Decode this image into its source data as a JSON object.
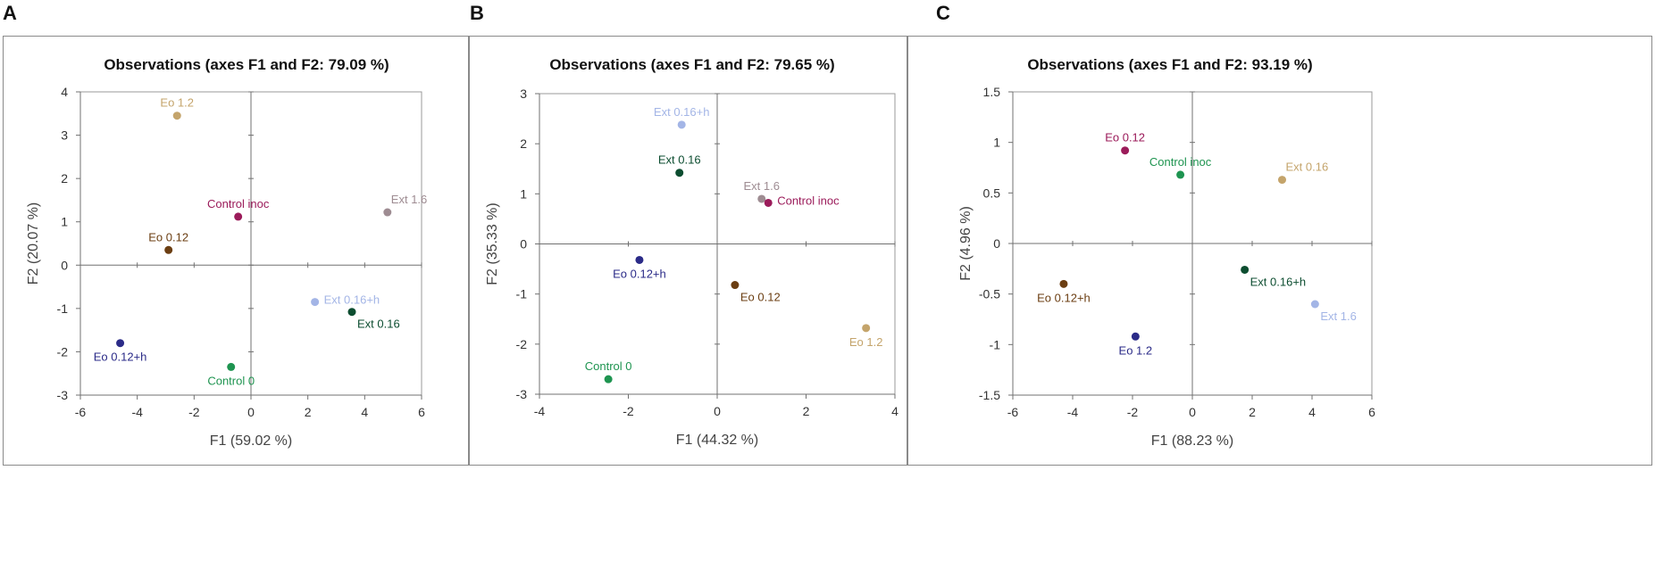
{
  "panels": [
    {
      "letter": "A"
    },
    {
      "letter": "B"
    },
    {
      "letter": "C"
    }
  ],
  "chart_data": [
    {
      "type": "scatter",
      "title": "Observations (axes F1 and F2: 79.09 %)",
      "xlabel": "F1 (59.02 %)",
      "ylabel": "F2 (20.07 %)",
      "xlim": [
        -6,
        6
      ],
      "ylim": [
        -3,
        4
      ],
      "xticks": [
        -6,
        -4,
        -2,
        0,
        2,
        4,
        6
      ],
      "yticks": [
        -3,
        -2,
        -1,
        0,
        1,
        2,
        3,
        4
      ],
      "grid": false,
      "points": [
        {
          "label": "Eo 1.2",
          "x": -2.6,
          "y": 3.45,
          "color": "#C4A46B",
          "pos": "above"
        },
        {
          "label": "Control inoc",
          "x": -0.45,
          "y": 1.12,
          "color": "#9B1B5A",
          "pos": "above"
        },
        {
          "label": "Ext 1.6",
          "x": 4.8,
          "y": 1.22,
          "color": "#9E8C92",
          "pos": "above-right"
        },
        {
          "label": "Eo 0.12",
          "x": -2.9,
          "y": 0.35,
          "color": "#6B3E12",
          "pos": "above"
        },
        {
          "label": "Ext 0.16+h",
          "x": 2.25,
          "y": -0.85,
          "color": "#A3B5E6",
          "pos": "right"
        },
        {
          "label": "Ext 0.16",
          "x": 3.55,
          "y": -1.08,
          "color": "#0C4D30",
          "pos": "below-right"
        },
        {
          "label": "Eo 0.12+h",
          "x": -4.6,
          "y": -1.8,
          "color": "#2B2B88",
          "pos": "below"
        },
        {
          "label": "Control 0",
          "x": -0.7,
          "y": -2.35,
          "color": "#1E9450",
          "pos": "below"
        }
      ]
    },
    {
      "type": "scatter",
      "title": "Observations (axes F1 and F2: 79.65 %)",
      "xlabel": "F1 (44.32 %)",
      "ylabel": "F2 (35.33 %)",
      "xlim": [
        -4,
        4
      ],
      "ylim": [
        -3,
        3
      ],
      "xticks": [
        -4,
        -2,
        0,
        2,
        4
      ],
      "yticks": [
        -3,
        -2,
        -1,
        0,
        1,
        2,
        3
      ],
      "grid": false,
      "points": [
        {
          "label": "Ext 0.16+h",
          "x": -0.8,
          "y": 2.38,
          "color": "#A3B5E6",
          "pos": "above"
        },
        {
          "label": "Ext 0.16",
          "x": -0.85,
          "y": 1.42,
          "color": "#0C4D30",
          "pos": "above"
        },
        {
          "label": "Ext 1.6",
          "x": 1.0,
          "y": 0.9,
          "color": "#9E8C92",
          "pos": "above"
        },
        {
          "label": "Control inoc",
          "x": 1.15,
          "y": 0.82,
          "color": "#9B1B5A",
          "pos": "right"
        },
        {
          "label": "Eo 0.12+h",
          "x": -1.75,
          "y": -0.32,
          "color": "#2B2B88",
          "pos": "below"
        },
        {
          "label": "Eo 0.12",
          "x": 0.4,
          "y": -0.82,
          "color": "#6B3E12",
          "pos": "below-right"
        },
        {
          "label": "Eo 1.2",
          "x": 3.35,
          "y": -1.68,
          "color": "#C4A46B",
          "pos": "below"
        },
        {
          "label": "Control 0",
          "x": -2.45,
          "y": -2.7,
          "color": "#1E9450",
          "pos": "above"
        }
      ]
    },
    {
      "type": "scatter",
      "title": "Observations (axes F1 and F2: 93.19 %)",
      "xlabel": "F1 (88.23 %)",
      "ylabel": "F2 (4.96 %)",
      "xlim": [
        -6,
        6
      ],
      "ylim": [
        -1.5,
        1.5
      ],
      "xticks": [
        -6,
        -4,
        -2,
        0,
        2,
        4,
        6
      ],
      "yticks": [
        -1.5,
        -1,
        -0.5,
        0,
        0.5,
        1,
        1.5
      ],
      "grid": false,
      "points": [
        {
          "label": "Eo 0.12",
          "x": -2.25,
          "y": 0.92,
          "color": "#9B1B5A",
          "pos": "above"
        },
        {
          "label": "Control inoc",
          "x": -0.4,
          "y": 0.68,
          "color": "#1E9450",
          "pos": "above"
        },
        {
          "label": "Ext 0.16",
          "x": 3.0,
          "y": 0.63,
          "color": "#C4A46B",
          "pos": "above-right"
        },
        {
          "label": "Eo 0.12+h",
          "x": -4.3,
          "y": -0.4,
          "color": "#6B3E12",
          "pos": "below"
        },
        {
          "label": "Ext 0.16+h",
          "x": 1.75,
          "y": -0.26,
          "color": "#0C4D30",
          "pos": "below-right"
        },
        {
          "label": "Ext 1.6",
          "x": 4.1,
          "y": -0.6,
          "color": "#A3B5E6",
          "pos": "below-right"
        },
        {
          "label": "Eo 1.2",
          "x": -1.9,
          "y": -0.92,
          "color": "#2B2B88",
          "pos": "below"
        }
      ]
    }
  ]
}
